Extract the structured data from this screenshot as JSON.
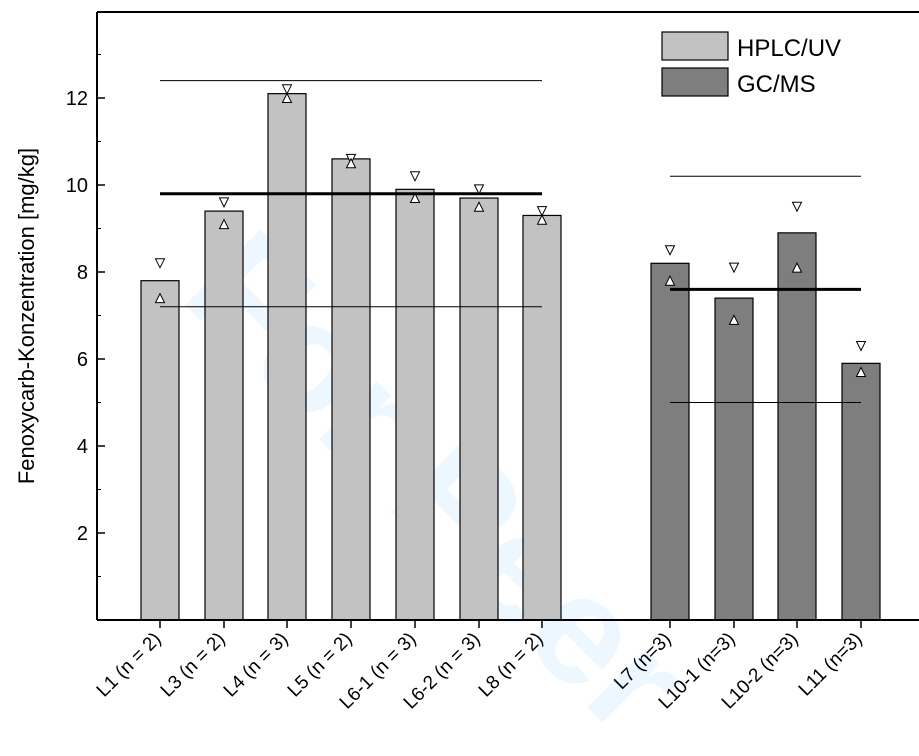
{
  "chart_data": {
    "type": "bar",
    "xlabel": "",
    "ylabel": "Fenoxycarb-Konzentration [mg/kg]",
    "ylim": [
      0,
      14
    ],
    "yticks": [
      2,
      4,
      6,
      8,
      10,
      12
    ],
    "legend_position": "top-right",
    "series": [
      {
        "name": "HPLC/UV",
        "color": "#c2c2c2",
        "categories": [
          "L1 (n = 2)",
          "L3 (n = 2)",
          "L4 (n = 3)",
          "L5 (n = 2)",
          "L6-1 (n = 3)",
          "L6-2 (n = 3)",
          "L8 (n = 2)"
        ],
        "values": [
          7.8,
          9.4,
          12.1,
          10.6,
          9.9,
          9.7,
          9.3
        ],
        "down_markers": [
          8.2,
          9.6,
          12.2,
          10.6,
          10.2,
          9.9,
          9.4
        ],
        "up_markers": [
          7.4,
          9.1,
          12.0,
          10.5,
          9.7,
          9.5,
          9.2
        ]
      },
      {
        "name": "GC/MS",
        "color": "#7e7e7e",
        "categories": [
          "L7 (n=3)",
          "L10-1 (n=3)",
          "L10-2 (n=3)",
          "L11 (n=3)"
        ],
        "values": [
          8.2,
          7.4,
          8.9,
          5.9
        ],
        "down_markers": [
          8.5,
          8.1,
          9.5,
          6.3
        ],
        "up_markers": [
          7.8,
          6.9,
          8.1,
          5.7
        ]
      }
    ],
    "reference_lines": [
      {
        "series": "HPLC/UV",
        "value": 12.4,
        "style": "thin"
      },
      {
        "series": "HPLC/UV",
        "value": 9.8,
        "style": "thick"
      },
      {
        "series": "HPLC/UV",
        "value": 7.2,
        "style": "thin"
      },
      {
        "series": "GC/MS",
        "value": 10.2,
        "style": "thin"
      },
      {
        "series": "GC/MS",
        "value": 7.6,
        "style": "thick"
      },
      {
        "series": "GC/MS",
        "value": 5.0,
        "style": "thin"
      }
    ]
  },
  "watermark": {
    "text": "For Peer"
  }
}
